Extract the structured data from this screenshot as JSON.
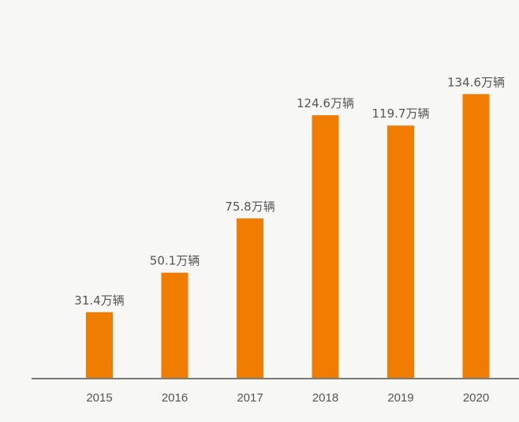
{
  "chart_data": {
    "type": "bar",
    "categories": [
      "2015",
      "2016",
      "2017",
      "2018",
      "2019",
      "2020"
    ],
    "values": [
      31.4,
      50.1,
      75.8,
      124.6,
      119.7,
      134.6
    ],
    "data_labels": [
      "31.4万辆",
      "50.1万辆",
      "75.8万辆",
      "124.6万辆",
      "119.7万辆",
      "134.6万辆"
    ],
    "title": "",
    "xlabel": "",
    "ylabel": "",
    "ylim": [
      0,
      143
    ],
    "grid": false,
    "legend": "none",
    "colors": {
      "bar": "#f07d00",
      "axis": "#7a7a7a",
      "text": "#555555",
      "background": "#f7f7f5"
    }
  }
}
